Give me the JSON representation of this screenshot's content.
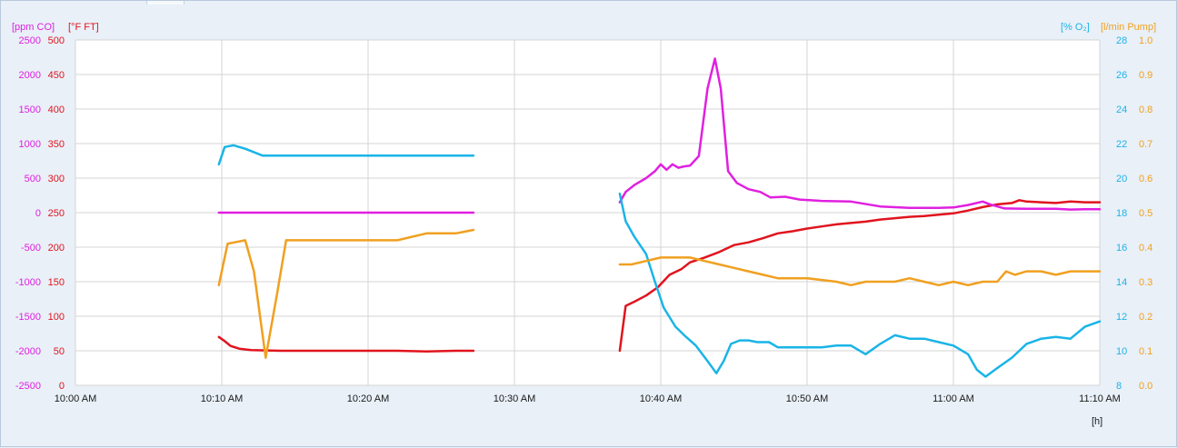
{
  "chart_data": {
    "type": "line",
    "x_unit_label": "[h]",
    "x_ticks": [
      "10:00 AM",
      "10:10 AM",
      "10:20 AM",
      "10:30 AM",
      "10:40 AM",
      "10:50 AM",
      "11:00 AM",
      "11:10 AM"
    ],
    "x_range_minutes_after_10am": [
      0,
      70
    ],
    "grid": true,
    "axes": {
      "left_outer": {
        "label": "[ppm CO]",
        "color": "#e020e0",
        "range": [
          -2500,
          2500
        ],
        "ticks": [
          "2500",
          "2000",
          "1500",
          "1000",
          "500",
          "0",
          "-500",
          "-1000",
          "-1500",
          "-2000",
          "-2500"
        ]
      },
      "left_inner": {
        "label": "[°F FT]",
        "color": "#e0141e",
        "range": [
          0,
          500
        ],
        "ticks": [
          "500",
          "450",
          "400",
          "350",
          "300",
          "250",
          "200",
          "150",
          "100",
          "50",
          "0"
        ]
      },
      "right_inner": {
        "label": "[% O₂]",
        "color": "#1ab4e8",
        "range": [
          8,
          28
        ],
        "ticks": [
          "28",
          "26",
          "24",
          "22",
          "20",
          "18",
          "16",
          "14",
          "12",
          "10",
          "8"
        ]
      },
      "right_outer": {
        "label": "[l/min Pump]",
        "color": "#f0a020",
        "range": [
          0.0,
          1.0
        ],
        "ticks": [
          "1.0",
          "0.9",
          "0.8",
          "0.7",
          "0.6",
          "0.5",
          "0.4",
          "0.3",
          "0.2",
          "0.1",
          "0.0"
        ]
      }
    },
    "series": [
      {
        "axis": "left_inner",
        "color": "#e0141e",
        "segments": [
          [
            [
              9.8,
              70
            ],
            [
              10.2,
              64
            ],
            [
              10.6,
              57
            ],
            [
              11.2,
              53
            ],
            [
              12,
              51
            ],
            [
              14,
              50
            ],
            [
              16,
              50
            ],
            [
              18,
              50
            ],
            [
              20,
              50
            ],
            [
              22,
              50
            ],
            [
              24,
              49
            ],
            [
              26,
              50
            ],
            [
              27.2,
              50
            ]
          ],
          [
            [
              37.2,
              50
            ],
            [
              37.6,
              115
            ],
            [
              38.2,
              121
            ],
            [
              39,
              130
            ],
            [
              39.8,
              142
            ],
            [
              40.6,
              160
            ],
            [
              41.4,
              168
            ],
            [
              42,
              178
            ],
            [
              43,
              185
            ],
            [
              44,
              193
            ],
            [
              45,
              203
            ],
            [
              46,
              207
            ],
            [
              47,
              213
            ],
            [
              48,
              220
            ],
            [
              49,
              223
            ],
            [
              50,
              227
            ],
            [
              51,
              230
            ],
            [
              52,
              233
            ],
            [
              53,
              235
            ],
            [
              54,
              237
            ],
            [
              55,
              240
            ],
            [
              56,
              242
            ],
            [
              57,
              244
            ],
            [
              58,
              245
            ],
            [
              59,
              247
            ],
            [
              60,
              249
            ],
            [
              61,
              253
            ],
            [
              62,
              258
            ],
            [
              63,
              262
            ],
            [
              64,
              264
            ],
            [
              64.5,
              268
            ],
            [
              65,
              266
            ],
            [
              66,
              265
            ],
            [
              67,
              264
            ],
            [
              68,
              266
            ],
            [
              69,
              265
            ],
            [
              70,
              265
            ]
          ]
        ]
      },
      {
        "axis": "left_outer",
        "color": "#e020e0",
        "segments": [
          [
            [
              9.8,
              0
            ],
            [
              27.2,
              0
            ]
          ],
          [
            [
              37.2,
              150
            ],
            [
              37.6,
              300
            ],
            [
              38.2,
              400
            ],
            [
              39,
              500
            ],
            [
              39.6,
              600
            ],
            [
              40,
              700
            ],
            [
              40.4,
              620
            ],
            [
              40.8,
              700
            ],
            [
              41.2,
              650
            ],
            [
              41.6,
              670
            ],
            [
              42,
              680
            ],
            [
              42.6,
              820
            ],
            [
              43.2,
              1800
            ],
            [
              43.7,
              2230
            ],
            [
              44.1,
              1800
            ],
            [
              44.6,
              600
            ],
            [
              45.2,
              430
            ],
            [
              46,
              340
            ],
            [
              46.8,
              300
            ],
            [
              47.5,
              220
            ],
            [
              48.5,
              230
            ],
            [
              49.5,
              190
            ],
            [
              51,
              170
            ],
            [
              53,
              160
            ],
            [
              55,
              90
            ],
            [
              57,
              70
            ],
            [
              59,
              70
            ],
            [
              60,
              75
            ],
            [
              61,
              110
            ],
            [
              62,
              160
            ],
            [
              62.5,
              120
            ],
            [
              63.5,
              60
            ],
            [
              65,
              55
            ],
            [
              67,
              55
            ],
            [
              68,
              45
            ],
            [
              69,
              50
            ],
            [
              70,
              50
            ]
          ]
        ]
      },
      {
        "axis": "right_inner",
        "color": "#1ab4e8",
        "segments": [
          [
            [
              9.8,
              20.8
            ],
            [
              10.2,
              21.8
            ],
            [
              10.8,
              21.9
            ],
            [
              11.6,
              21.7
            ],
            [
              12.8,
              21.3
            ],
            [
              14,
              21.3
            ],
            [
              16,
              21.3
            ],
            [
              18,
              21.3
            ],
            [
              20,
              21.3
            ],
            [
              22,
              21.3
            ],
            [
              24,
              21.3
            ],
            [
              26,
              21.3
            ],
            [
              27.2,
              21.3
            ]
          ],
          [
            [
              37.2,
              19.1
            ],
            [
              37.6,
              17.5
            ],
            [
              38.2,
              16.6
            ],
            [
              39,
              15.6
            ],
            [
              39.6,
              14
            ],
            [
              40.2,
              12.5
            ],
            [
              41,
              11.4
            ],
            [
              41.6,
              10.9
            ],
            [
              42.4,
              10.3
            ],
            [
              43.2,
              9.4
            ],
            [
              43.8,
              8.7
            ],
            [
              44.3,
              9.4
            ],
            [
              44.8,
              10.4
            ],
            [
              45.4,
              10.6
            ],
            [
              46,
              10.6
            ],
            [
              46.6,
              10.5
            ],
            [
              47.4,
              10.5
            ],
            [
              48,
              10.2
            ],
            [
              49,
              10.2
            ],
            [
              50,
              10.2
            ],
            [
              51,
              10.2
            ],
            [
              52,
              10.3
            ],
            [
              53,
              10.3
            ],
            [
              54,
              9.8
            ],
            [
              55,
              10.4
            ],
            [
              56,
              10.9
            ],
            [
              57,
              10.7
            ],
            [
              58,
              10.7
            ],
            [
              59,
              10.5
            ],
            [
              60,
              10.3
            ],
            [
              61,
              9.8
            ],
            [
              61.6,
              8.9
            ],
            [
              62.2,
              8.5
            ],
            [
              63,
              9
            ],
            [
              64,
              9.6
            ],
            [
              65,
              10.4
            ],
            [
              66,
              10.7
            ],
            [
              67,
              10.8
            ],
            [
              68,
              10.7
            ],
            [
              69,
              11.4
            ],
            [
              70,
              11.7
            ]
          ]
        ]
      },
      {
        "axis": "right_outer",
        "color": "#f0a020",
        "segments": [
          [
            [
              9.8,
              0.29
            ],
            [
              10.4,
              0.41
            ],
            [
              11.6,
              0.42
            ],
            [
              12.2,
              0.33
            ],
            [
              13,
              0.08
            ],
            [
              13.8,
              0.27
            ],
            [
              14.4,
              0.42
            ],
            [
              16,
              0.42
            ],
            [
              18,
              0.42
            ],
            [
              20,
              0.42
            ],
            [
              22,
              0.42
            ],
            [
              24,
              0.44
            ],
            [
              26,
              0.44
            ],
            [
              27.2,
              0.45
            ]
          ],
          [
            [
              37.2,
              0.35
            ],
            [
              38,
              0.35
            ],
            [
              39,
              0.36
            ],
            [
              40,
              0.37
            ],
            [
              41,
              0.37
            ],
            [
              42,
              0.37
            ],
            [
              43,
              0.36
            ],
            [
              44,
              0.35
            ],
            [
              45,
              0.34
            ],
            [
              46,
              0.33
            ],
            [
              47,
              0.32
            ],
            [
              48,
              0.31
            ],
            [
              50,
              0.31
            ],
            [
              52,
              0.3
            ],
            [
              53,
              0.29
            ],
            [
              54,
              0.3
            ],
            [
              56,
              0.3
            ],
            [
              57,
              0.31
            ],
            [
              58,
              0.3
            ],
            [
              59,
              0.29
            ],
            [
              60,
              0.3
            ],
            [
              61,
              0.29
            ],
            [
              62,
              0.3
            ],
            [
              63,
              0.3
            ],
            [
              63.6,
              0.33
            ],
            [
              64.2,
              0.32
            ],
            [
              65,
              0.33
            ],
            [
              66,
              0.33
            ],
            [
              67,
              0.32
            ],
            [
              68,
              0.33
            ],
            [
              69,
              0.33
            ],
            [
              70,
              0.33
            ]
          ]
        ]
      }
    ]
  }
}
